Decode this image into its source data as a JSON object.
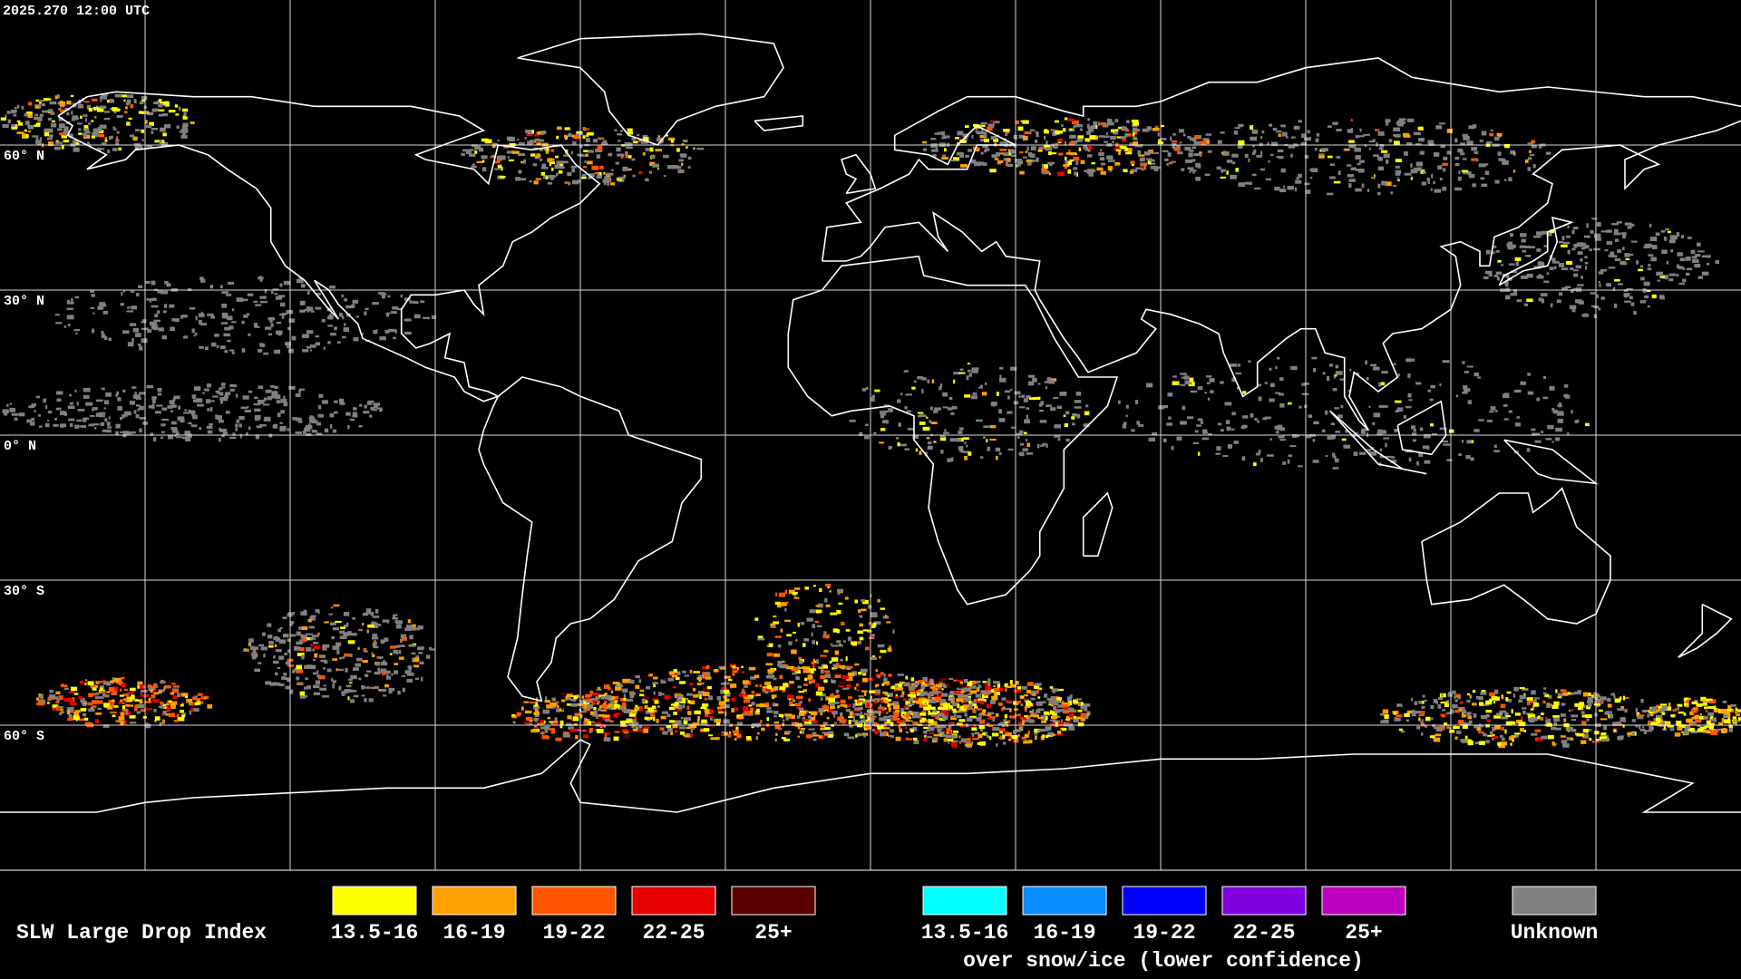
{
  "timestamp": "2025.270 12:00 UTC",
  "lat_labels": [
    "60° N",
    "30° N",
    "0° N",
    "30° S",
    "60° S"
  ],
  "legend": {
    "title": "SLW Large Drop Index",
    "items": [
      {
        "label": "13.5-16",
        "color": "#ffff00"
      },
      {
        "label": "16-19",
        "color": "#ffa000"
      },
      {
        "label": "19-22",
        "color": "#ff5500"
      },
      {
        "label": "22-25",
        "color": "#e80000"
      },
      {
        "label": "25+",
        "color": "#5a0000"
      }
    ],
    "snow_items": [
      {
        "label": "13.5-16",
        "color": "#00ffff"
      },
      {
        "label": "16-19",
        "color": "#0a8cff"
      },
      {
        "label": "19-22",
        "color": "#0000ff"
      },
      {
        "label": "22-25",
        "color": "#8000e0"
      },
      {
        "label": "25+",
        "color": "#c000c0"
      }
    ],
    "snow_caption": "over snow/ice (lower confidence)",
    "unknown": {
      "label": "Unknown",
      "color": "#808080"
    }
  }
}
